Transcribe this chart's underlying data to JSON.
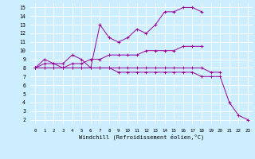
{
  "xlabel": "Windchill (Refroidissement éolien,°C)",
  "bg_color": "#cceeff",
  "line_color": "#990099",
  "xlim": [
    -0.5,
    23.5
  ],
  "ylim": [
    1.5,
    15.5
  ],
  "xticks": [
    0,
    1,
    2,
    3,
    4,
    5,
    6,
    7,
    8,
    9,
    10,
    11,
    12,
    13,
    14,
    15,
    16,
    17,
    18,
    19,
    20,
    21,
    22,
    23
  ],
  "yticks": [
    2,
    3,
    4,
    5,
    6,
    7,
    8,
    9,
    10,
    11,
    12,
    13,
    14,
    15
  ],
  "series": [
    [
      8.0,
      9.0,
      8.5,
      8.5,
      9.5,
      9.0,
      8.0,
      13.0,
      11.5,
      11.0,
      11.5,
      12.5,
      12.0,
      13.0,
      14.5,
      14.5,
      15.0,
      15.0,
      14.5,
      null,
      null,
      null,
      null,
      null
    ],
    [
      8.0,
      8.5,
      8.5,
      8.0,
      8.5,
      8.5,
      9.0,
      9.0,
      9.5,
      9.5,
      9.5,
      9.5,
      10.0,
      10.0,
      10.0,
      10.0,
      10.5,
      10.5,
      10.5,
      null,
      null,
      null,
      null,
      null
    ],
    [
      8.0,
      8.0,
      8.0,
      8.0,
      8.0,
      8.0,
      8.0,
      8.0,
      8.0,
      8.0,
      8.0,
      8.0,
      8.0,
      8.0,
      8.0,
      8.0,
      8.0,
      8.0,
      8.0,
      7.5,
      7.5,
      null,
      null,
      null
    ],
    [
      8.0,
      8.0,
      8.0,
      8.0,
      8.0,
      8.0,
      8.0,
      8.0,
      8.0,
      7.5,
      7.5,
      7.5,
      7.5,
      7.5,
      7.5,
      7.5,
      7.5,
      7.5,
      7.0,
      7.0,
      7.0,
      4.0,
      2.5,
      2.0
    ]
  ]
}
